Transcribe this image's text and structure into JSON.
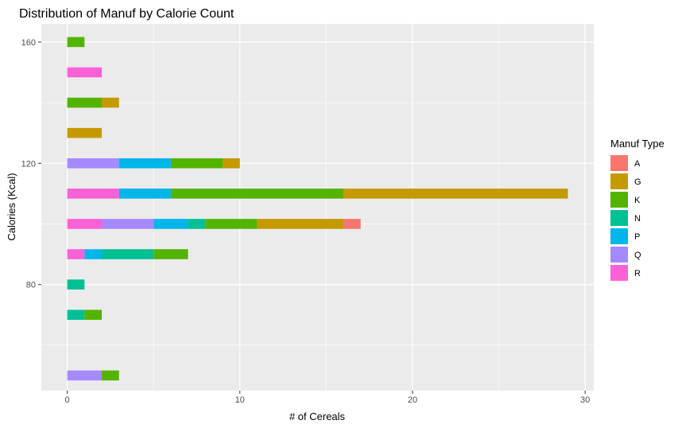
{
  "chart_data": {
    "type": "bar",
    "orientation": "horizontal",
    "stacked": true,
    "title": "Distribution of Manuf by Calorie Count",
    "xlabel": "# of Cereals",
    "ylabel": "Calories (Kcal)",
    "xlim": [
      -1.5,
      30.5
    ],
    "ylim": [
      45,
      166
    ],
    "x_ticks": [
      0,
      10,
      20,
      30
    ],
    "y_ticks": [
      80,
      120,
      160
    ],
    "grid": true,
    "legend": {
      "title": "Manuf Type",
      "position": "right",
      "entries": [
        {
          "label": "A",
          "color": "#F8766D"
        },
        {
          "label": "G",
          "color": "#C49A00"
        },
        {
          "label": "K",
          "color": "#53B400"
        },
        {
          "label": "N",
          "color": "#00C094"
        },
        {
          "label": "P",
          "color": "#00B6EB"
        },
        {
          "label": "Q",
          "color": "#A58AFF"
        },
        {
          "label": "R",
          "color": "#FB61D7"
        }
      ]
    },
    "stack_order": [
      "R",
      "Q",
      "P",
      "N",
      "K",
      "G",
      "A"
    ],
    "calories": [
      50,
      70,
      80,
      90,
      100,
      110,
      120,
      130,
      140,
      150,
      160
    ],
    "counts": [
      {
        "calories": 50,
        "R": 0,
        "Q": 2,
        "P": 0,
        "N": 0,
        "K": 1,
        "G": 0,
        "A": 0
      },
      {
        "calories": 70,
        "R": 0,
        "Q": 0,
        "P": 0,
        "N": 1,
        "K": 1,
        "G": 0,
        "A": 0
      },
      {
        "calories": 80,
        "R": 0,
        "Q": 0,
        "P": 0,
        "N": 1,
        "K": 0,
        "G": 0,
        "A": 0
      },
      {
        "calories": 90,
        "R": 1,
        "Q": 0,
        "P": 1,
        "N": 3,
        "K": 2,
        "G": 0,
        "A": 0
      },
      {
        "calories": 100,
        "R": 2,
        "Q": 3,
        "P": 2,
        "N": 1,
        "K": 3,
        "G": 5,
        "A": 1
      },
      {
        "calories": 110,
        "R": 3,
        "Q": 0,
        "P": 3,
        "N": 0,
        "K": 10,
        "G": 13,
        "A": 0
      },
      {
        "calories": 120,
        "R": 0,
        "Q": 3,
        "P": 3,
        "N": 0,
        "K": 3,
        "G": 1,
        "A": 0
      },
      {
        "calories": 130,
        "R": 0,
        "Q": 0,
        "P": 0,
        "N": 0,
        "K": 0,
        "G": 2,
        "A": 0
      },
      {
        "calories": 140,
        "R": 0,
        "Q": 0,
        "P": 0,
        "N": 0,
        "K": 2,
        "G": 1,
        "A": 0
      },
      {
        "calories": 150,
        "R": 2,
        "Q": 0,
        "P": 0,
        "N": 0,
        "K": 0,
        "G": 0,
        "A": 0
      },
      {
        "calories": 160,
        "R": 0,
        "Q": 0,
        "P": 0,
        "N": 0,
        "K": 1,
        "G": 0,
        "A": 0
      }
    ],
    "bar_thickness": 3.3,
    "colors": {
      "panel_background": "#EBEBEB",
      "grid": "#FFFFFF",
      "tick_label": "#4D4D4D"
    }
  }
}
